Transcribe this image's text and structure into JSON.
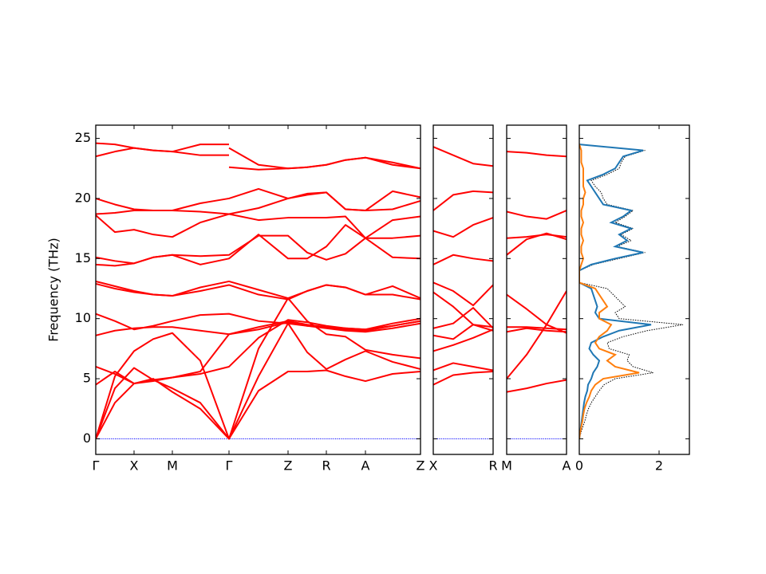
{
  "chart_data": [
    {
      "type": "line",
      "ylabel": "Frequency (THz)",
      "ytick_labels": true,
      "color": "red",
      "hline": 0,
      "hline_color": "blue",
      "xlim": [
        0,
        407
      ],
      "ylim": [
        -1.3,
        26.1
      ],
      "yticks": [
        0,
        5,
        10,
        15,
        20,
        25
      ],
      "xticks": [
        {
          "value": 0,
          "label": "Γ"
        },
        {
          "value": 48,
          "label": "X"
        },
        {
          "value": 96,
          "label": "M"
        },
        {
          "value": 167,
          "label": "Γ"
        },
        {
          "value": 241,
          "label": "Z"
        },
        {
          "value": 289,
          "label": "R"
        },
        {
          "value": 338,
          "label": "A"
        },
        {
          "value": 407,
          "label": "Z"
        }
      ],
      "series": [
        {
          "x": [
            0,
            24,
            48,
            72,
            96,
            131,
            167,
            204,
            241,
            265,
            289,
            313,
            338,
            372,
            407
          ],
          "values": [
            0,
            3.0,
            4.6,
            5.0,
            3.9,
            2.5,
            0,
            4.0,
            5.6,
            5.6,
            5.7,
            5.2,
            4.8,
            5.4,
            5.6
          ]
        },
        {
          "x": [
            0,
            24,
            48,
            72,
            96,
            131,
            167,
            204,
            241,
            265,
            289,
            313,
            338,
            372,
            407
          ],
          "values": [
            0,
            4.2,
            5.9,
            4.9,
            4.2,
            3.0,
            0,
            5.2,
            9.6,
            7.2,
            5.8,
            6.6,
            7.3,
            6.4,
            5.8
          ]
        },
        {
          "x": [
            0,
            24,
            48,
            72,
            96,
            131,
            167,
            204,
            241,
            265,
            289,
            313,
            338,
            372,
            407
          ],
          "values": [
            0,
            5.2,
            7.3,
            8.3,
            8.8,
            6.5,
            0,
            7.5,
            11.7,
            9.8,
            8.7,
            8.5,
            7.4,
            7.0,
            6.7
          ]
        },
        {
          "x": [
            0,
            24,
            48,
            72,
            96,
            131,
            167,
            204,
            241,
            265,
            289,
            313,
            338,
            372,
            407
          ],
          "values": [
            4.5,
            5.6,
            4.6,
            4.8,
            5.1,
            5.4,
            6.0,
            8.4,
            9.9,
            9.7,
            9.4,
            9.2,
            9.1,
            9.4,
            9.8
          ]
        },
        {
          "x": [
            0,
            24,
            48,
            72,
            96,
            131,
            167,
            204,
            241,
            265,
            289,
            313,
            338,
            372,
            407
          ],
          "values": [
            6.0,
            5.4,
            4.6,
            4.9,
            5.1,
            5.6,
            8.7,
            9.3,
            9.8,
            9.5,
            9.3,
            9.2,
            9.1,
            9.6,
            10.0
          ]
        },
        {
          "x": [
            0,
            24,
            48,
            72,
            96,
            131,
            167,
            204,
            241,
            265,
            289,
            313,
            338,
            372,
            407
          ],
          "values": [
            8.6,
            9.0,
            9.2,
            9.3,
            9.3,
            9.0,
            8.7,
            9.1,
            9.7,
            9.4,
            9.2,
            9.0,
            8.9,
            9.2,
            9.6
          ]
        },
        {
          "x": [
            0,
            24,
            48,
            72,
            96,
            131,
            167,
            204,
            241,
            265,
            289,
            313,
            338,
            372,
            407
          ],
          "values": [
            10.4,
            9.8,
            9.1,
            9.4,
            9.8,
            10.3,
            10.4,
            9.8,
            9.6,
            9.4,
            9.3,
            9.1,
            9.0,
            9.4,
            9.8
          ]
        },
        {
          "x": [
            0,
            24,
            48,
            72,
            96,
            131,
            167,
            204,
            241,
            265,
            289,
            313,
            338,
            372,
            407
          ],
          "values": [
            12.9,
            12.5,
            12.2,
            12.0,
            11.9,
            12.3,
            12.8,
            12.0,
            11.6,
            12.3,
            12.8,
            12.6,
            12.0,
            12.7,
            11.7
          ]
        },
        {
          "x": [
            0,
            24,
            48,
            72,
            96,
            131,
            167,
            204,
            241,
            265,
            289,
            313,
            338,
            372,
            407
          ],
          "values": [
            13.1,
            12.7,
            12.3,
            12.0,
            11.9,
            12.6,
            13.1,
            12.4,
            11.7,
            12.3,
            12.8,
            12.6,
            12.0,
            12.0,
            11.6
          ]
        },
        {
          "x": [
            0,
            24,
            48,
            72,
            96,
            131,
            167,
            204,
            241,
            265,
            289,
            313,
            338,
            372,
            407
          ],
          "values": [
            14.5,
            14.4,
            14.6,
            15.1,
            15.3,
            14.5,
            15.0,
            17.0,
            15.0,
            15.0,
            16.0,
            17.8,
            16.7,
            15.1,
            15.0
          ]
        },
        {
          "x": [
            0,
            24,
            48,
            72,
            96,
            131,
            167,
            204,
            241,
            265,
            289,
            313,
            338,
            372,
            407
          ],
          "values": [
            15.1,
            14.8,
            14.6,
            15.1,
            15.3,
            15.2,
            15.3,
            16.9,
            16.9,
            15.5,
            14.9,
            15.4,
            16.7,
            16.7,
            16.9
          ]
        },
        {
          "x": [
            0,
            24,
            48,
            72,
            96,
            131,
            167,
            204,
            241,
            265,
            289,
            313,
            338,
            372,
            407
          ],
          "values": [
            18.6,
            17.2,
            17.4,
            17.0,
            16.8,
            18.0,
            18.7,
            18.2,
            18.4,
            18.4,
            18.4,
            18.5,
            16.7,
            18.2,
            18.5
          ]
        },
        {
          "x": [
            0,
            24,
            48,
            72,
            96,
            131,
            167,
            204,
            241,
            265,
            289,
            313,
            338,
            372,
            407
          ],
          "values": [
            18.7,
            18.8,
            19.0,
            19.0,
            19.0,
            18.9,
            18.7,
            19.2,
            20.0,
            20.4,
            20.5,
            19.1,
            19.0,
            19.1,
            19.8
          ]
        },
        {
          "x": [
            0,
            24,
            48,
            72,
            96,
            131,
            167,
            204,
            241,
            265,
            289,
            313,
            338,
            372,
            407
          ],
          "values": [
            20.0,
            19.5,
            19.1,
            19.0,
            19.0,
            19.6,
            20.0,
            20.8,
            20.0,
            20.3,
            20.5,
            19.1,
            19.0,
            20.6,
            20.1
          ]
        },
        {
          "x": [
            0,
            24,
            48,
            72,
            96,
            131,
            167
          ],
          "values": [
            23.5,
            23.9,
            24.2,
            24.0,
            23.9,
            23.6,
            23.6
          ]
        },
        {
          "x": [
            167,
            204,
            241,
            265,
            289,
            313,
            338,
            372,
            407
          ],
          "values": [
            22.6,
            22.4,
            22.5,
            22.6,
            22.8,
            23.2,
            23.4,
            23.0,
            22.5
          ]
        },
        {
          "x": [
            0,
            24,
            48,
            72,
            96,
            131,
            167
          ],
          "values": [
            24.6,
            24.5,
            24.2,
            24.0,
            23.9,
            24.5,
            24.5
          ]
        },
        {
          "x": [
            167,
            204,
            241,
            265,
            289,
            313,
            338,
            372,
            407
          ],
          "values": [
            24.2,
            22.8,
            22.5,
            22.6,
            22.8,
            23.2,
            23.4,
            22.8,
            22.5
          ]
        }
      ]
    },
    {
      "type": "line",
      "ytick_labels": false,
      "color": "red",
      "hline": 0,
      "hline_color": "blue",
      "xlim": [
        0,
        75
      ],
      "ylim": [
        -1.3,
        26.1
      ],
      "yticks": [
        0,
        5,
        10,
        15,
        20,
        25
      ],
      "xticks": [
        {
          "value": 0,
          "label": "X"
        },
        {
          "value": 75,
          "label": "R"
        }
      ],
      "x": [
        0,
        25,
        50,
        75
      ],
      "series": [
        {
          "values": [
            4.5,
            5.3,
            5.5,
            5.6
          ]
        },
        {
          "values": [
            5.7,
            6.3,
            6.0,
            5.7
          ]
        },
        {
          "values": [
            7.3,
            7.8,
            8.4,
            9.1
          ]
        },
        {
          "values": [
            8.6,
            8.3,
            9.5,
            9.3
          ]
        },
        {
          "values": [
            9.2,
            9.6,
            10.9,
            9.2
          ]
        },
        {
          "values": [
            12.2,
            11.0,
            9.5,
            9.0
          ]
        },
        {
          "values": [
            13.0,
            12.3,
            11.1,
            12.8
          ]
        },
        {
          "values": [
            14.5,
            15.3,
            15.0,
            14.8
          ]
        },
        {
          "values": [
            17.3,
            16.8,
            17.8,
            18.4
          ]
        },
        {
          "values": [
            19.0,
            20.3,
            20.6,
            20.5
          ]
        },
        {
          "values": [
            24.3,
            23.6,
            22.9,
            22.7
          ]
        }
      ]
    },
    {
      "type": "line",
      "ytick_labels": false,
      "color": "red",
      "hline": 0,
      "hline_color": "blue",
      "xlim": [
        0,
        75
      ],
      "ylim": [
        -1.3,
        26.1
      ],
      "yticks": [
        0,
        5,
        10,
        15,
        20,
        25
      ],
      "xticks": [
        {
          "value": 0,
          "label": "M"
        },
        {
          "value": 75,
          "label": "A"
        }
      ],
      "x": [
        0,
        25,
        50,
        75
      ],
      "series": [
        {
          "values": [
            3.9,
            4.2,
            4.6,
            4.9
          ]
        },
        {
          "values": [
            5.0,
            7.0,
            9.5,
            12.3
          ]
        },
        {
          "values": [
            8.9,
            9.2,
            9.0,
            8.9
          ]
        },
        {
          "values": [
            9.3,
            9.3,
            9.2,
            9.1
          ]
        },
        {
          "values": [
            12.0,
            10.8,
            9.5,
            8.8
          ]
        },
        {
          "values": [
            15.3,
            16.6,
            17.1,
            16.6
          ]
        },
        {
          "values": [
            16.7,
            16.8,
            17.0,
            16.8
          ]
        },
        {
          "values": [
            18.9,
            18.5,
            18.3,
            19.0
          ]
        },
        {
          "values": [
            23.9,
            23.8,
            23.6,
            23.5
          ]
        }
      ]
    },
    {
      "type": "dos",
      "ytick_labels": false,
      "xlim": [
        0,
        2.76
      ],
      "ylim": [
        -1.3,
        26.1
      ],
      "xticks": [
        0,
        2
      ],
      "yticks": [
        0,
        5,
        10,
        15,
        20,
        25
      ],
      "y": [
        0,
        0.5,
        1,
        1.5,
        2,
        2.5,
        3,
        3.5,
        4,
        4.5,
        5,
        5.5,
        6,
        6.5,
        7,
        7.5,
        8,
        8.5,
        9,
        9.5,
        10,
        10.5,
        11,
        11.5,
        12,
        12.5,
        13,
        13.5,
        14,
        14.5,
        15,
        15.5,
        16,
        16.5,
        17,
        17.5,
        18,
        18.5,
        19,
        19.5,
        20,
        20.5,
        21,
        21.5,
        22,
        22.5,
        23,
        23.5,
        24,
        24.5
      ],
      "series": [
        {
          "color": "black",
          "linestyle": "dotted",
          "values": [
            0,
            0.04,
            0.09,
            0.14,
            0.18,
            0.23,
            0.3,
            0.4,
            0.5,
            0.62,
            0.9,
            1.85,
            1.35,
            1.2,
            1.25,
            0.75,
            0.7,
            1.1,
            1.7,
            2.6,
            1.0,
            0.9,
            1.15,
            1.0,
            0.85,
            0.7,
            0,
            0,
            0,
            0.35,
            1.0,
            1.65,
            0.95,
            1.3,
            1.05,
            1.35,
            0.9,
            1.15,
            1.35,
            0.7,
            0.6,
            0.55,
            0.4,
            0.3,
            0.7,
            1.0,
            1.05,
            1.15,
            1.65,
            0
          ]
        },
        {
          "color": "#1f77b4",
          "linestyle": "solid",
          "values": [
            0,
            0.02,
            0.04,
            0.06,
            0.08,
            0.1,
            0.12,
            0.15,
            0.2,
            0.22,
            0.3,
            0.35,
            0.45,
            0.5,
            0.35,
            0.25,
            0.3,
            0.6,
            1.0,
            1.8,
            0.5,
            0.4,
            0.45,
            0.4,
            0.35,
            0.3,
            0,
            0,
            0,
            0.3,
            0.9,
            1.6,
            0.9,
            1.2,
            1.0,
            1.3,
            0.8,
            1.1,
            1.3,
            0.6,
            0.5,
            0.4,
            0.3,
            0.2,
            0.6,
            0.9,
            1.0,
            1.1,
            1.6,
            0
          ]
        },
        {
          "color": "#ff7f0e",
          "linestyle": "solid",
          "values": [
            0,
            0.02,
            0.05,
            0.08,
            0.1,
            0.13,
            0.18,
            0.25,
            0.3,
            0.4,
            0.6,
            1.5,
            0.9,
            0.7,
            0.9,
            0.5,
            0.4,
            0.5,
            0.7,
            0.8,
            0.5,
            0.5,
            0.7,
            0.6,
            0.5,
            0.4,
            0,
            0,
            0,
            0.05,
            0.1,
            0.05,
            0.05,
            0.1,
            0.05,
            0.05,
            0.1,
            0.05,
            0.05,
            0.1,
            0.1,
            0.15,
            0.1,
            0.1,
            0.1,
            0.1,
            0.05,
            0.05,
            0.05,
            0
          ]
        }
      ]
    }
  ]
}
